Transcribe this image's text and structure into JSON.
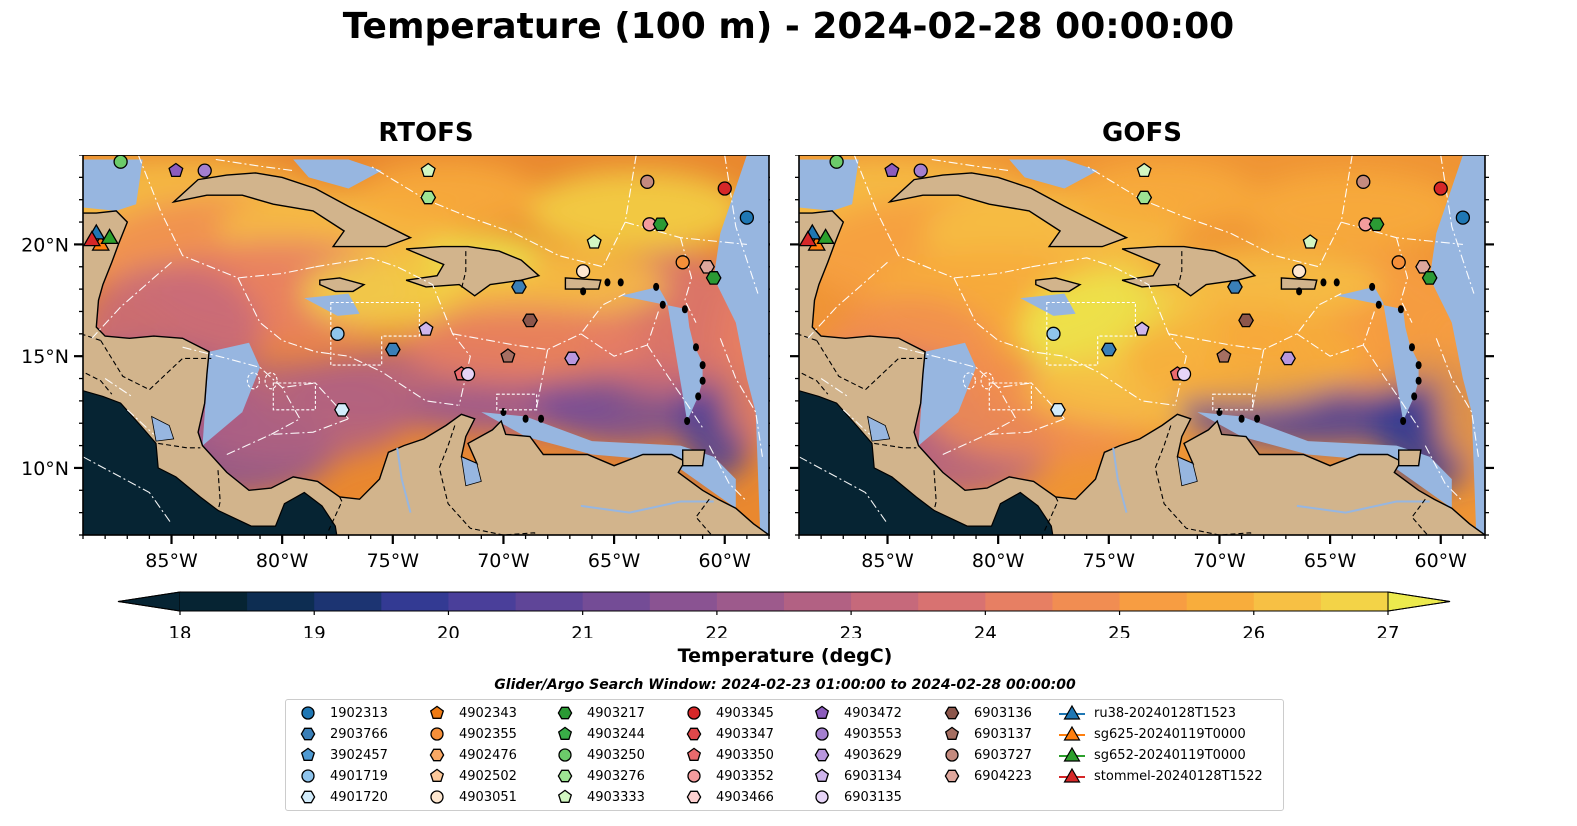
{
  "title": "Temperature (100 m) - 2024-02-28 00:00:00",
  "panels": [
    {
      "title": "RTOFS"
    },
    {
      "title": "GOFS"
    }
  ],
  "axes": {
    "lon_ticks": [
      "85°W",
      "80°W",
      "75°W",
      "70°W",
      "65°W",
      "60°W"
    ],
    "lon_values": [
      -85,
      -80,
      -75,
      -70,
      -65,
      -60
    ],
    "lat_ticks": [
      "20°N",
      "15°N",
      "10°N"
    ],
    "lat_values": [
      20,
      15,
      10
    ],
    "lon_range": [
      -89,
      -58
    ],
    "lat_range": [
      7,
      24
    ]
  },
  "colorbar": {
    "label": "Temperature (degC)",
    "ticks": [
      "18",
      "19",
      "20",
      "21",
      "22",
      "23",
      "24",
      "25",
      "26",
      "27"
    ],
    "range": [
      18,
      27
    ],
    "extend": "both",
    "colors": [
      "#062433",
      "#0d2d52",
      "#1c3472",
      "#333a93",
      "#4a3f9a",
      "#5f4598",
      "#744c96",
      "#8a5392",
      "#9d5a8c",
      "#b26183",
      "#c6697b",
      "#d87271",
      "#e77f63",
      "#f18d52",
      "#f79d42",
      "#f8ad3c",
      "#f7c044",
      "#f3d347",
      "#ecea4d"
    ]
  },
  "search_window": "Glider/Argo Search Window: 2024-02-23 01:00:00 to 2024-02-28 00:00:00",
  "land_color": "#d2b48c",
  "legend": [
    {
      "id": "1902313",
      "marker": "circle",
      "color": "#1f77b4"
    },
    {
      "id": "2903766",
      "marker": "hexagon",
      "color": "#3a7fb7"
    },
    {
      "id": "3902457",
      "marker": "pentagon",
      "color": "#4f9ad2"
    },
    {
      "id": "4901719",
      "marker": "circle",
      "color": "#8fc4ec"
    },
    {
      "id": "4901720",
      "marker": "hexagon",
      "color": "#d3ecfb"
    },
    {
      "id": "4902343",
      "marker": "pentagon",
      "color": "#f07b14"
    },
    {
      "id": "4902355",
      "marker": "circle",
      "color": "#f58f39"
    },
    {
      "id": "4902476",
      "marker": "hexagon",
      "color": "#faa864"
    },
    {
      "id": "4902502",
      "marker": "pentagon",
      "color": "#fcc99b"
    },
    {
      "id": "4903051",
      "marker": "circle",
      "color": "#fde6cf"
    },
    {
      "id": "4903217",
      "marker": "hexagon",
      "color": "#2b9a34"
    },
    {
      "id": "4903244",
      "marker": "pentagon",
      "color": "#39ac47"
    },
    {
      "id": "4903250",
      "marker": "circle",
      "color": "#6ccb6a"
    },
    {
      "id": "4903276",
      "marker": "hexagon",
      "color": "#9ee393"
    },
    {
      "id": "4903333",
      "marker": "pentagon",
      "color": "#d3f7c2"
    },
    {
      "id": "4903345",
      "marker": "circle",
      "color": "#d62728"
    },
    {
      "id": "4903347",
      "marker": "hexagon",
      "color": "#e0484a"
    },
    {
      "id": "4903350",
      "marker": "pentagon",
      "color": "#ea6a6d"
    },
    {
      "id": "4903352",
      "marker": "circle",
      "color": "#f39c9d"
    },
    {
      "id": "4903466",
      "marker": "hexagon",
      "color": "#fcd0d0"
    },
    {
      "id": "4903472",
      "marker": "pentagon",
      "color": "#8c5cbd"
    },
    {
      "id": "4903553",
      "marker": "circle",
      "color": "#a47fcf"
    },
    {
      "id": "4903629",
      "marker": "hexagon",
      "color": "#b997de"
    },
    {
      "id": "6903134",
      "marker": "pentagon",
      "color": "#cfb5ec"
    },
    {
      "id": "6903135",
      "marker": "circle",
      "color": "#e6d4f7"
    },
    {
      "id": "6903136",
      "marker": "hexagon",
      "color": "#8c564b"
    },
    {
      "id": "6903137",
      "marker": "pentagon",
      "color": "#a66f62"
    },
    {
      "id": "6903727",
      "marker": "circle",
      "color": "#c48a7e"
    },
    {
      "id": "6904223",
      "marker": "hexagon",
      "color": "#dea79d"
    },
    {
      "id": "ru38-20240128T1523",
      "marker": "triangle-line",
      "color": "#1f77b4"
    },
    {
      "id": "sg625-20240119T0000",
      "marker": "triangle-line",
      "color": "#ff7f0e"
    },
    {
      "id": "sg652-20240119T0000",
      "marker": "triangle-line",
      "color": "#2ca02c"
    },
    {
      "id": "stommel-20240128T1522",
      "marker": "triangle-line",
      "color": "#d62728"
    }
  ],
  "floats": [
    {
      "id": "1902313",
      "lon": -59.0,
      "lat": 21.2
    },
    {
      "id": "4903345",
      "lon": -60.0,
      "lat": 22.5
    },
    {
      "id": "6903727",
      "lon": -63.5,
      "lat": 22.8
    },
    {
      "id": "4903352",
      "lon": -63.4,
      "lat": 20.9
    },
    {
      "id": "4903217",
      "lon": -62.9,
      "lat": 20.9
    },
    {
      "id": "4902355",
      "lon": -61.9,
      "lat": 19.2
    },
    {
      "id": "6904223",
      "lon": -60.8,
      "lat": 19.0
    },
    {
      "id": "4903217",
      "lon": -60.5,
      "lat": 18.5
    },
    {
      "id": "4903333",
      "lon": -65.9,
      "lat": 20.1
    },
    {
      "id": "4903051",
      "lon": -66.4,
      "lat": 18.8
    },
    {
      "id": "4903333",
      "lon": -73.4,
      "lat": 23.3
    },
    {
      "id": "4903276",
      "lon": -73.4,
      "lat": 22.1
    },
    {
      "id": "4903472",
      "lon": -84.8,
      "lat": 23.3
    },
    {
      "id": "4903553",
      "lon": -83.5,
      "lat": 23.3
    },
    {
      "id": "4903250",
      "lon": -87.3,
      "lat": 23.7
    },
    {
      "id": "2903766",
      "lon": -69.3,
      "lat": 18.1
    },
    {
      "id": "6903136",
      "lon": -68.8,
      "lat": 16.6
    },
    {
      "id": "6903134",
      "lon": -73.5,
      "lat": 16.2
    },
    {
      "id": "4901719",
      "lon": -77.5,
      "lat": 16.0
    },
    {
      "id": "2903766",
      "lon": -75.0,
      "lat": 15.3
    },
    {
      "id": "6903137",
      "lon": -69.8,
      "lat": 15.0
    },
    {
      "id": "4903629",
      "lon": -66.9,
      "lat": 14.9
    },
    {
      "id": "4903350",
      "lon": -71.9,
      "lat": 14.2
    },
    {
      "id": "6903135",
      "lon": -71.6,
      "lat": 14.2
    },
    {
      "id": "4901720",
      "lon": -77.3,
      "lat": 12.6
    }
  ],
  "gliders": [
    {
      "id": "sg625-20240119T0000",
      "lon": -88.2,
      "lat": 20.0
    },
    {
      "id": "ru38-20240128T1523",
      "lon": -88.4,
      "lat": 20.5
    },
    {
      "id": "stommel-20240128T1522",
      "lon": -88.6,
      "lat": 20.2
    },
    {
      "id": "sg652-20240119T0000",
      "lon": -87.8,
      "lat": 20.3
    }
  ]
}
